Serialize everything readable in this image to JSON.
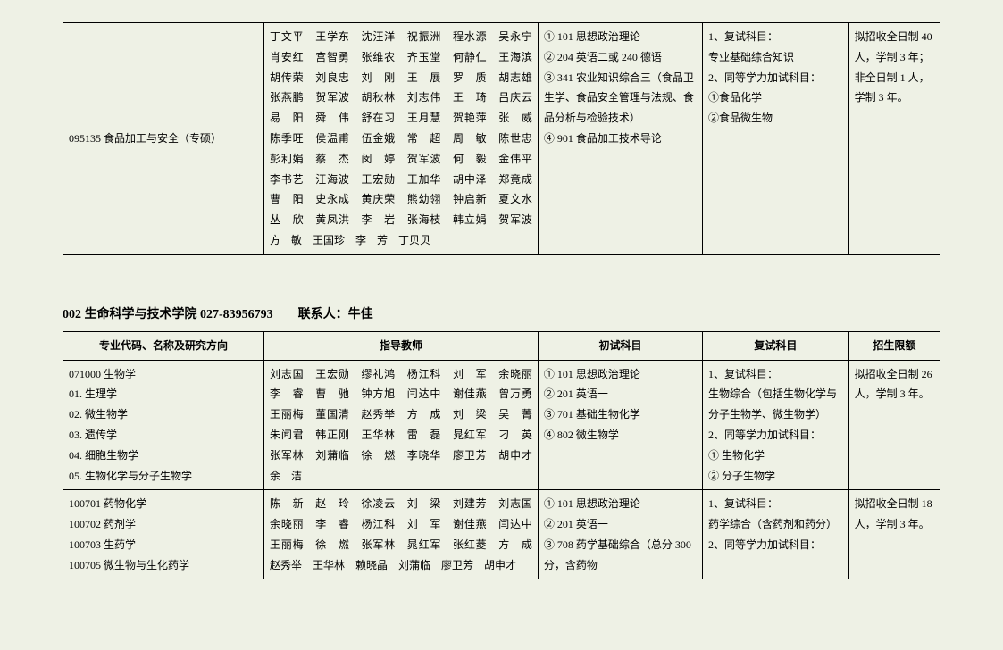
{
  "table1": {
    "row": {
      "code_name": "095135 食品加工与安全（专硕）",
      "teachers": "丁文平　王学东　沈汪洋　祝振洲　程水源　吴永宁　肖安红　宫智勇　张维农　齐玉堂　何静仁　王海滨　胡传荣　刘良忠　刘　刚　王　展　罗　质　胡志雄　张燕鹏　贺军波　胡秋林　刘志伟　王　琦　吕庆云　易　阳　舜　伟　舒在习　王月慧　贺艳萍　张　威　陈季旺　侯温甫　伍金娥　常　超　周　敏　陈世忠　彭利娟　蔡　杰　闵　婷　贺军波　何　毅　金伟平　李书艺　汪海波　王宏勋　王加华　胡中泽　郑竟成　曹　阳　史永成　黄庆荣　熊幼翎　钟启新　夏文水　丛　欣　黄凤洪　李　岩　张海枝　韩立娟　贺军波　方　敏　王国珍　李　芳　丁贝贝",
      "exam1": "① 101 思想政治理论\n② 204 英语二或 240 德语\n③ 341 农业知识综合三（食品卫生学、食品安全管理与法规、食品分析与检验技术）\n④ 901 食品加工技术导论",
      "exam2": "1、复试科目：\n专业基础综合知识\n2、同等学力加试科目：\n①食品化学\n②食品微生物",
      "quota": "拟招收全日制 40 人，学制 3 年；非全日制 1 人，学制 3 年。"
    }
  },
  "section": {
    "title": "002 生命科学与技术学院 027-83956793　　联系人：牛佳"
  },
  "table2": {
    "headers": {
      "h1": "专业代码、名称及研究方向",
      "h2": "指导教师",
      "h3": "初试科目",
      "h4": "复试科目",
      "h5": "招生限额"
    },
    "row1": {
      "code_name": "071000 生物学\n01. 生理学\n02. 微生物学\n03. 遗传学\n04. 细胞生物学\n05. 生物化学与分子生物学",
      "teachers": "刘志国　王宏勋　缪礼鸿　杨江科　刘　军　余晓丽　李　睿　曹　驰　钟方旭　闫达中　谢佳燕　曾万勇　王丽梅　董国清　赵秀举　方　成　刘　梁　吴　菁　朱闻君　韩正刚　王华林　雷　磊　晁红军　刁　英　张军林　刘蒲临　徐　燃　李晓华　廖卫芳　胡申才　余　洁",
      "exam1": "① 101 思想政治理论\n② 201 英语一\n③ 701 基础生物化学\n④ 802 微生物学",
      "exam2": "1、复试科目：\n生物综合（包括生物化学与分子生物学、微生物学）\n2、同等学力加试科目：\n① 生物化学\n② 分子生物学",
      "quota": "拟招收全日制 26 人，学制 3 年。"
    },
    "row2": {
      "code_name": "100701 药物化学\n100702 药剂学\n100703 生药学\n100705 微生物与生化药学",
      "teachers": "陈　新　赵　玲　徐凌云　刘　梁　刘建芳　刘志国　余晓丽　李　睿　杨江科　刘　军　谢佳燕　闫达中　王丽梅　徐　燃　张军林　晁红军　张红菱　方　成　赵秀举　王华林　赖晓晶　刘蒲临　廖卫芳　胡申才",
      "exam1": "① 101 思想政治理论\n② 201 英语一\n③ 708 药学基础综合（总分 300 分，含药物",
      "exam2": "1、复试科目：\n药学综合（含药剂和药分）\n2、同等学力加试科目：",
      "quota": "拟招收全日制 18 人，学制 3 年。"
    }
  }
}
